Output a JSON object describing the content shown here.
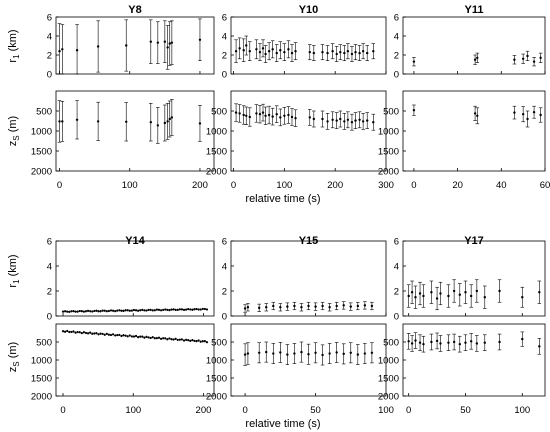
{
  "figure": {
    "row_xlabels": [
      "relative time (s)",
      "relative time (s)"
    ],
    "ylabel_top": "r",
    "ylabel_top_sub": "1",
    "ylabel_top_unit": " (km)",
    "ylabel_bottom": "z",
    "ylabel_bottom_sub": "S",
    "ylabel_bottom_unit": " (m)",
    "marker_color": "#000000"
  },
  "chart_data": [
    {
      "type": "scatter",
      "title": "Y8",
      "xlim": [
        -5,
        220
      ],
      "xticks": [
        0,
        100,
        200
      ],
      "top": {
        "ylim": [
          0,
          6
        ],
        "yticks": [
          0,
          2,
          4,
          6
        ]
      },
      "bottom": {
        "ylim": [
          0,
          2000
        ],
        "yticks": [
          500,
          1000,
          1500,
          2000
        ],
        "reversed": true
      },
      "points": [
        {
          "t": 0,
          "r": 2.4,
          "re": 2.9,
          "z": 760,
          "ze": 520
        },
        {
          "t": 4,
          "r": 2.6,
          "re": 2.6,
          "z": 760,
          "ze": 500
        },
        {
          "t": 25,
          "r": 2.5,
          "re": 2.7,
          "z": 720,
          "ze": 480
        },
        {
          "t": 55,
          "r": 2.9,
          "re": 2.7,
          "z": 760,
          "ze": 480
        },
        {
          "t": 95,
          "r": 3.0,
          "re": 2.7,
          "z": 770,
          "ze": 480
        },
        {
          "t": 130,
          "r": 3.4,
          "re": 2.3,
          "z": 780,
          "ze": 470
        },
        {
          "t": 140,
          "r": 3.3,
          "re": 2.2,
          "z": 860,
          "ze": 450
        },
        {
          "t": 150,
          "r": 3.4,
          "re": 2.2,
          "z": 800,
          "ze": 450
        },
        {
          "t": 154,
          "r": 2.8,
          "re": 2.3,
          "z": 760,
          "ze": 450
        },
        {
          "t": 157,
          "r": 3.2,
          "re": 2.3,
          "z": 700,
          "ze": 450
        },
        {
          "t": 160,
          "r": 3.3,
          "re": 2.3,
          "z": 660,
          "ze": 450
        },
        {
          "t": 200,
          "r": 3.6,
          "re": 2.2,
          "z": 810,
          "ze": 450
        }
      ]
    },
    {
      "type": "scatter",
      "title": "Y10",
      "xlim": [
        -5,
        300
      ],
      "xticks": [
        0,
        100,
        200,
        300
      ],
      "top": {
        "ylim": [
          0,
          6
        ],
        "yticks": [
          0,
          2,
          4,
          6
        ]
      },
      "bottom": {
        "ylim": [
          0,
          2000
        ],
        "yticks": [
          500,
          1000,
          1500,
          2000
        ],
        "reversed": true
      },
      "points": [
        {
          "t": 5,
          "r": 2.4,
          "re": 1.2,
          "z": 540,
          "ze": 220
        },
        {
          "t": 12,
          "r": 2.7,
          "re": 1.1,
          "z": 560,
          "ze": 220
        },
        {
          "t": 20,
          "r": 2.5,
          "re": 1.2,
          "z": 600,
          "ze": 230
        },
        {
          "t": 25,
          "r": 3.0,
          "re": 1.0,
          "z": 620,
          "ze": 220
        },
        {
          "t": 32,
          "r": 2.4,
          "re": 1.0,
          "z": 650,
          "ze": 230
        },
        {
          "t": 45,
          "r": 2.6,
          "re": 1.0,
          "z": 560,
          "ze": 220
        },
        {
          "t": 52,
          "r": 2.3,
          "re": 0.9,
          "z": 580,
          "ze": 220
        },
        {
          "t": 58,
          "r": 2.7,
          "re": 0.9,
          "z": 540,
          "ze": 210
        },
        {
          "t": 63,
          "r": 2.1,
          "re": 0.9,
          "z": 620,
          "ze": 220
        },
        {
          "t": 70,
          "r": 2.4,
          "re": 0.9,
          "z": 600,
          "ze": 220
        },
        {
          "t": 77,
          "r": 2.6,
          "re": 0.9,
          "z": 640,
          "ze": 210
        },
        {
          "t": 85,
          "r": 2.2,
          "re": 0.9,
          "z": 580,
          "ze": 210
        },
        {
          "t": 92,
          "r": 2.5,
          "re": 0.9,
          "z": 660,
          "ze": 210
        },
        {
          "t": 100,
          "r": 2.3,
          "re": 0.9,
          "z": 620,
          "ze": 210
        },
        {
          "t": 108,
          "r": 2.6,
          "re": 0.9,
          "z": 600,
          "ze": 210
        },
        {
          "t": 115,
          "r": 2.2,
          "re": 0.9,
          "z": 650,
          "ze": 210
        },
        {
          "t": 122,
          "r": 2.4,
          "re": 0.9,
          "z": 680,
          "ze": 210
        },
        {
          "t": 150,
          "r": 2.3,
          "re": 0.8,
          "z": 660,
          "ze": 200
        },
        {
          "t": 158,
          "r": 2.2,
          "re": 0.8,
          "z": 700,
          "ze": 200
        },
        {
          "t": 175,
          "r": 2.3,
          "re": 0.8,
          "z": 700,
          "ze": 200
        },
        {
          "t": 185,
          "r": 2.2,
          "re": 0.8,
          "z": 760,
          "ze": 200
        },
        {
          "t": 195,
          "r": 2.4,
          "re": 0.8,
          "z": 720,
          "ze": 200
        },
        {
          "t": 203,
          "r": 2.1,
          "re": 0.8,
          "z": 740,
          "ze": 200
        },
        {
          "t": 210,
          "r": 2.3,
          "re": 0.8,
          "z": 700,
          "ze": 200
        },
        {
          "t": 218,
          "r": 2.2,
          "re": 0.8,
          "z": 760,
          "ze": 200
        },
        {
          "t": 225,
          "r": 2.4,
          "re": 0.8,
          "z": 720,
          "ze": 200
        },
        {
          "t": 233,
          "r": 2.1,
          "re": 0.8,
          "z": 780,
          "ze": 200
        },
        {
          "t": 240,
          "r": 2.3,
          "re": 0.8,
          "z": 740,
          "ze": 200
        },
        {
          "t": 248,
          "r": 2.2,
          "re": 0.8,
          "z": 720,
          "ze": 200
        },
        {
          "t": 255,
          "r": 2.4,
          "re": 0.8,
          "z": 760,
          "ze": 200
        },
        {
          "t": 263,
          "r": 2.2,
          "re": 0.8,
          "z": 740,
          "ze": 200
        },
        {
          "t": 275,
          "r": 2.4,
          "re": 0.8,
          "z": 780,
          "ze": 200
        }
      ]
    },
    {
      "type": "scatter",
      "title": "Y11",
      "xlim": [
        -5,
        60
      ],
      "xticks": [
        0,
        20,
        40,
        60
      ],
      "top": {
        "ylim": [
          0,
          6
        ],
        "yticks": [
          0,
          2,
          4,
          6
        ]
      },
      "bottom": {
        "ylim": [
          0,
          2000
        ],
        "yticks": [
          500,
          1000,
          1500,
          2000
        ],
        "reversed": true
      },
      "points": [
        {
          "t": 0,
          "r": 1.3,
          "re": 0.45,
          "z": 480,
          "ze": 130
        },
        {
          "t": 28,
          "r": 1.5,
          "re": 0.5,
          "z": 560,
          "ze": 180
        },
        {
          "t": 29,
          "r": 1.7,
          "re": 0.5,
          "z": 620,
          "ze": 200
        },
        {
          "t": 46,
          "r": 1.5,
          "re": 0.45,
          "z": 540,
          "ze": 160
        },
        {
          "t": 50,
          "r": 1.6,
          "re": 0.5,
          "z": 580,
          "ze": 190
        },
        {
          "t": 52,
          "r": 1.9,
          "re": 0.5,
          "z": 700,
          "ze": 200
        },
        {
          "t": 55,
          "r": 1.3,
          "re": 0.45,
          "z": 530,
          "ze": 150
        },
        {
          "t": 58,
          "r": 1.7,
          "re": 0.5,
          "z": 600,
          "ze": 180
        }
      ]
    },
    {
      "type": "scatter",
      "title": "Y14",
      "xlim": [
        -10,
        215
      ],
      "xticks": [
        0,
        100,
        200
      ],
      "top": {
        "ylim": [
          0,
          6
        ],
        "yticks": [
          0,
          2,
          4,
          6
        ]
      },
      "bottom": {
        "ylim": [
          0,
          2000
        ],
        "yticks": [
          500,
          1000,
          1500,
          2000
        ],
        "reversed": true
      },
      "trend": {
        "t0": 0,
        "t1": 205,
        "r0": 0.35,
        "r1": 0.55,
        "z0": 200,
        "z1": 490,
        "count": 70
      }
    },
    {
      "type": "scatter",
      "title": "Y15",
      "xlim": [
        -10,
        100
      ],
      "xticks": [
        0,
        50,
        100
      ],
      "top": {
        "ylim": [
          0,
          6
        ],
        "yticks": [
          0,
          2,
          4,
          6
        ]
      },
      "bottom": {
        "ylim": [
          0,
          2000
        ],
        "yticks": [
          500,
          1000,
          1500,
          2000
        ],
        "reversed": true
      },
      "points": [
        {
          "t": 0,
          "r": 0.6,
          "re": 0.3,
          "z": 850,
          "ze": 300
        },
        {
          "t": 2,
          "r": 0.7,
          "re": 0.3,
          "z": 820,
          "ze": 300
        },
        {
          "t": 10,
          "r": 0.65,
          "re": 0.3,
          "z": 800,
          "ze": 280
        },
        {
          "t": 15,
          "r": 0.7,
          "re": 0.3,
          "z": 780,
          "ze": 280
        },
        {
          "t": 20,
          "r": 0.8,
          "re": 0.3,
          "z": 820,
          "ze": 280
        },
        {
          "t": 25,
          "r": 0.7,
          "re": 0.3,
          "z": 790,
          "ze": 280
        },
        {
          "t": 30,
          "r": 0.75,
          "re": 0.3,
          "z": 850,
          "ze": 280
        },
        {
          "t": 35,
          "r": 0.8,
          "re": 0.3,
          "z": 820,
          "ze": 280
        },
        {
          "t": 40,
          "r": 0.7,
          "re": 0.3,
          "z": 780,
          "ze": 280
        },
        {
          "t": 45,
          "r": 0.8,
          "re": 0.3,
          "z": 840,
          "ze": 280
        },
        {
          "t": 50,
          "r": 0.75,
          "re": 0.3,
          "z": 800,
          "ze": 280
        },
        {
          "t": 55,
          "r": 0.8,
          "re": 0.3,
          "z": 860,
          "ze": 280
        },
        {
          "t": 60,
          "r": 0.7,
          "re": 0.3,
          "z": 820,
          "ze": 280
        },
        {
          "t": 65,
          "r": 0.8,
          "re": 0.3,
          "z": 790,
          "ze": 280
        },
        {
          "t": 70,
          "r": 0.85,
          "re": 0.3,
          "z": 830,
          "ze": 280
        },
        {
          "t": 75,
          "r": 0.75,
          "re": 0.3,
          "z": 800,
          "ze": 280
        },
        {
          "t": 80,
          "r": 0.8,
          "re": 0.3,
          "z": 850,
          "ze": 280
        },
        {
          "t": 85,
          "r": 0.85,
          "re": 0.3,
          "z": 820,
          "ze": 280
        },
        {
          "t": 90,
          "r": 0.8,
          "re": 0.3,
          "z": 800,
          "ze": 280
        }
      ]
    },
    {
      "type": "scatter",
      "title": "Y17",
      "xlim": [
        -5,
        120
      ],
      "xticks": [
        0,
        50,
        100
      ],
      "top": {
        "ylim": [
          0,
          6
        ],
        "yticks": [
          0,
          2,
          4,
          6
        ]
      },
      "bottom": {
        "ylim": [
          0,
          2000
        ],
        "yticks": [
          500,
          1000,
          1500,
          2000
        ],
        "reversed": true
      },
      "points": [
        {
          "t": 0,
          "r": 1.6,
          "re": 0.9,
          "z": 480,
          "ze": 220
        },
        {
          "t": 3,
          "r": 1.9,
          "re": 0.9,
          "z": 540,
          "ze": 220
        },
        {
          "t": 6,
          "r": 1.5,
          "re": 0.9,
          "z": 460,
          "ze": 220
        },
        {
          "t": 10,
          "r": 1.8,
          "re": 0.9,
          "z": 520,
          "ze": 220
        },
        {
          "t": 13,
          "r": 1.6,
          "re": 0.9,
          "z": 560,
          "ze": 220
        },
        {
          "t": 20,
          "r": 1.9,
          "re": 0.9,
          "z": 500,
          "ze": 220
        },
        {
          "t": 25,
          "r": 1.4,
          "re": 0.9,
          "z": 470,
          "ze": 220
        },
        {
          "t": 28,
          "r": 1.8,
          "re": 0.9,
          "z": 540,
          "ze": 220
        },
        {
          "t": 35,
          "r": 1.6,
          "re": 0.9,
          "z": 520,
          "ze": 220
        },
        {
          "t": 40,
          "r": 2.0,
          "re": 0.9,
          "z": 500,
          "ze": 220
        },
        {
          "t": 45,
          "r": 1.7,
          "re": 0.9,
          "z": 560,
          "ze": 220
        },
        {
          "t": 50,
          "r": 1.9,
          "re": 0.9,
          "z": 520,
          "ze": 220
        },
        {
          "t": 55,
          "r": 1.6,
          "re": 0.9,
          "z": 480,
          "ze": 220
        },
        {
          "t": 60,
          "r": 2.0,
          "re": 0.9,
          "z": 540,
          "ze": 220
        },
        {
          "t": 67,
          "r": 1.5,
          "re": 0.9,
          "z": 520,
          "ze": 220
        },
        {
          "t": 80,
          "r": 2.0,
          "re": 0.9,
          "z": 500,
          "ze": 220
        },
        {
          "t": 100,
          "r": 1.5,
          "re": 0.8,
          "z": 420,
          "ze": 200
        },
        {
          "t": 115,
          "r": 1.9,
          "re": 0.9,
          "z": 620,
          "ze": 220
        }
      ]
    }
  ]
}
